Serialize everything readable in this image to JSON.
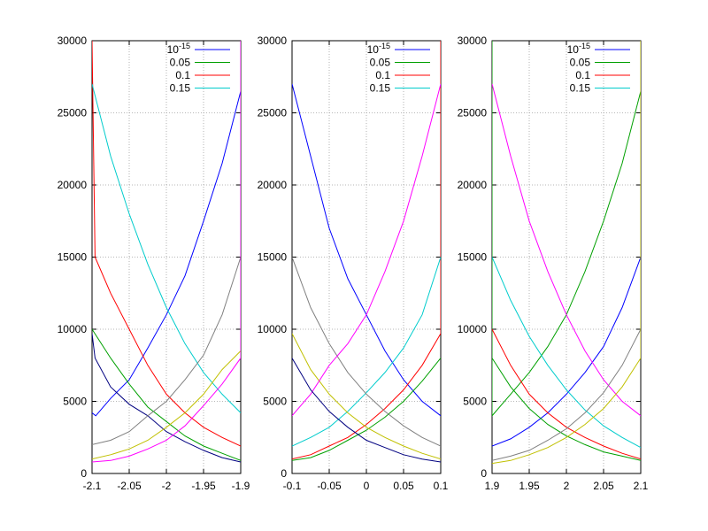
{
  "chart_data": [
    {
      "type": "line",
      "xlim": [
        -2.1,
        -1.9
      ],
      "ylim": [
        0,
        30000
      ],
      "xticks": [
        "-2.1",
        "-2.05",
        "-2",
        "-1.95",
        "-1.9"
      ],
      "yticks": [
        "0",
        "5000",
        "10000",
        "15000",
        "20000",
        "25000",
        "30000"
      ],
      "grid": true,
      "legend_position": "top-right",
      "legend": [
        {
          "base": "10",
          "sup": "-15",
          "color": "#0000ff"
        },
        {
          "base": "0.05",
          "sup": "",
          "color": "#00a000"
        },
        {
          "base": "0.1",
          "sup": "",
          "color": "#ff0000"
        },
        {
          "base": "0.15",
          "sup": "",
          "color": "#00cccc"
        }
      ],
      "series": [
        {
          "color": "#0000ff",
          "x": [
            -2.1,
            -2.095,
            -2.075,
            -2.05,
            -2.025,
            -2,
            -1.975,
            -1.95,
            -1.925,
            -1.9
          ],
          "y": [
            4200,
            4000,
            5200,
            6500,
            8700,
            11000,
            13700,
            17500,
            21500,
            26500
          ]
        },
        {
          "color": "#00a000",
          "x": [
            -2.1,
            -2.075,
            -2.05,
            -2.025,
            -2,
            -1.975,
            -1.95,
            -1.925,
            -1.9
          ],
          "y": [
            10000,
            8000,
            6200,
            4600,
            3600,
            2600,
            1900,
            1400,
            900
          ]
        },
        {
          "color": "#ff0000",
          "x": [
            -2.1,
            -2.096,
            -2.075,
            -2.05,
            -2.025,
            -2,
            -1.975,
            -1.95,
            -1.925,
            -1.9
          ],
          "y": [
            30000,
            15000,
            12500,
            10000,
            7500,
            5500,
            4200,
            3200,
            2500,
            1900
          ]
        },
        {
          "color": "#00cccc",
          "x": [
            -2.1,
            -2.075,
            -2.05,
            -2.025,
            -2,
            -1.975,
            -1.95,
            -1.925,
            -1.9
          ],
          "y": [
            27000,
            22000,
            18000,
            14500,
            11500,
            9000,
            7000,
            5500,
            4200
          ]
        },
        {
          "color": "#000080",
          "x": [
            -2.1,
            -2.096,
            -2.075,
            -2.05,
            -2.025,
            -2,
            -1.975,
            -1.95,
            -1.925,
            -1.9
          ],
          "y": [
            9700,
            8000,
            6000,
            4800,
            4000,
            2900,
            2200,
            1600,
            1100,
            800
          ]
        },
        {
          "color": "#808080",
          "x": [
            -2.1,
            -2.075,
            -2.05,
            -2.025,
            -2,
            -1.975,
            -1.95,
            -1.925,
            -1.9
          ],
          "y": [
            2000,
            2300,
            2900,
            4000,
            5000,
            6500,
            8200,
            11000,
            15000
          ]
        },
        {
          "color": "#c0c000",
          "x": [
            -2.1,
            -2.075,
            -2.05,
            -2.025,
            -2,
            -1.975,
            -1.95,
            -1.925,
            -1.9,
            -1.9
          ],
          "y": [
            1000,
            1300,
            1700,
            2300,
            3200,
            4200,
            5500,
            7200,
            8500,
            10000
          ]
        },
        {
          "color": "#ff00ff",
          "x": [
            -2.1,
            -2.075,
            -2.05,
            -2.025,
            -2,
            -1.975,
            -1.95,
            -1.925,
            -1.9,
            -1.9
          ],
          "y": [
            800,
            900,
            1200,
            1700,
            2300,
            3300,
            4700,
            6200,
            8000,
            30000
          ]
        }
      ]
    },
    {
      "type": "line",
      "xlim": [
        -0.1,
        0.1
      ],
      "ylim": [
        0,
        30000
      ],
      "xticks": [
        "-0.1",
        "-0.05",
        "0",
        "0.05",
        "0.1"
      ],
      "yticks": [
        "0",
        "5000",
        "10000",
        "15000",
        "20000",
        "25000",
        "30000"
      ],
      "grid": true,
      "legend_position": "top-right",
      "legend": [
        {
          "base": "10",
          "sup": "-15",
          "color": "#0000ff"
        },
        {
          "base": "0.05",
          "sup": "",
          "color": "#00a000"
        },
        {
          "base": "0.1",
          "sup": "",
          "color": "#ff0000"
        },
        {
          "base": "0.15",
          "sup": "",
          "color": "#00cccc"
        }
      ],
      "series": [
        {
          "color": "#0000ff",
          "x": [
            -0.1,
            -0.075,
            -0.05,
            -0.025,
            0,
            0.025,
            0.05,
            0.075,
            0.1
          ],
          "y": [
            27000,
            22000,
            17000,
            13500,
            11000,
            8500,
            6500,
            5000,
            4000
          ]
        },
        {
          "color": "#00a000",
          "x": [
            -0.1,
            -0.075,
            -0.05,
            -0.025,
            0,
            0.025,
            0.05,
            0.075,
            0.1
          ],
          "y": [
            900,
            1100,
            1600,
            2300,
            3000,
            3900,
            5000,
            6400,
            8000
          ]
        },
        {
          "color": "#ff0000",
          "x": [
            -0.1,
            -0.075,
            -0.05,
            -0.025,
            0,
            0.025,
            0.05,
            0.075,
            0.1,
            0.1
          ],
          "y": [
            1000,
            1300,
            1900,
            2500,
            3400,
            4500,
            5800,
            7500,
            9700,
            30000
          ]
        },
        {
          "color": "#00cccc",
          "x": [
            -0.1,
            -0.075,
            -0.05,
            -0.025,
            0,
            0.025,
            0.05,
            0.075,
            0.1
          ],
          "y": [
            1900,
            2500,
            3200,
            4300,
            5600,
            7000,
            8700,
            11000,
            15000
          ]
        },
        {
          "color": "#808080",
          "x": [
            -0.1,
            -0.075,
            -0.05,
            -0.025,
            0,
            0.025,
            0.05,
            0.075,
            0.1
          ],
          "y": [
            15000,
            11500,
            9000,
            7000,
            5500,
            4300,
            3300,
            2500,
            1900
          ]
        },
        {
          "color": "#c0c000",
          "x": [
            -0.1,
            -0.075,
            -0.05,
            -0.025,
            0,
            0.025,
            0.05,
            0.075,
            0.1
          ],
          "y": [
            9700,
            7200,
            5500,
            4200,
            3200,
            2500,
            1900,
            1400,
            1000
          ]
        },
        {
          "color": "#ff00ff",
          "x": [
            -0.1,
            -0.075,
            -0.05,
            -0.025,
            0,
            0.025,
            0.05,
            0.075,
            0.1
          ],
          "y": [
            4000,
            5500,
            7500,
            9000,
            11000,
            14000,
            17500,
            22000,
            27000
          ]
        },
        {
          "color": "#000080",
          "x": [
            -0.1,
            -0.075,
            -0.05,
            -0.025,
            0,
            0.025,
            0.05,
            0.075,
            0.1
          ],
          "y": [
            8000,
            5800,
            4300,
            3200,
            2300,
            1800,
            1300,
            1000,
            800
          ]
        }
      ]
    },
    {
      "type": "line",
      "xlim": [
        1.9,
        2.1
      ],
      "ylim": [
        0,
        30000
      ],
      "xticks": [
        "1.9",
        "1.95",
        "2",
        "2.05",
        "2.1"
      ],
      "yticks": [
        "0",
        "5000",
        "10000",
        "15000",
        "20000",
        "25000",
        "30000"
      ],
      "grid": true,
      "legend_position": "top-right",
      "legend": [
        {
          "base": "10",
          "sup": "-15",
          "color": "#0000ff"
        },
        {
          "base": "0.05",
          "sup": "",
          "color": "#00a000"
        },
        {
          "base": "0.1",
          "sup": "",
          "color": "#ff0000"
        },
        {
          "base": "0.15",
          "sup": "",
          "color": "#00cccc"
        }
      ],
      "series": [
        {
          "color": "#0000ff",
          "x": [
            1.9,
            1.925,
            1.95,
            1.975,
            2,
            2.025,
            2.05,
            2.075,
            2.1
          ],
          "y": [
            1900,
            2400,
            3200,
            4200,
            5500,
            7000,
            8800,
            11500,
            15000
          ]
        },
        {
          "color": "#00a000",
          "x": [
            1.9,
            1.9,
            1.925,
            1.95,
            1.975,
            2,
            2.025,
            2.05,
            2.075,
            2.1
          ],
          "y": [
            30000,
            4000,
            5500,
            7000,
            8800,
            11000,
            14000,
            17500,
            21500,
            26500
          ]
        },
        {
          "color": "#ff0000",
          "x": [
            1.9,
            1.925,
            1.95,
            1.975,
            2,
            2.025,
            2.05,
            2.075,
            2.1
          ],
          "y": [
            10000,
            7500,
            5500,
            4200,
            3200,
            2500,
            1900,
            1400,
            1000
          ]
        },
        {
          "color": "#00cccc",
          "x": [
            1.9,
            1.925,
            1.95,
            1.975,
            2,
            2.025,
            2.05,
            2.075,
            2.1
          ],
          "y": [
            15000,
            12000,
            9500,
            7500,
            5800,
            4400,
            3300,
            2500,
            1800
          ]
        },
        {
          "color": "#00a000",
          "x": [
            1.9,
            1.925,
            1.95,
            1.975,
            2,
            2.025,
            2.05,
            2.075,
            2.1
          ],
          "y": [
            8000,
            6000,
            4500,
            3400,
            2600,
            2000,
            1500,
            1200,
            900
          ]
        },
        {
          "color": "#ff00ff",
          "x": [
            1.9,
            1.925,
            1.95,
            1.975,
            2,
            2.025,
            2.05,
            2.075,
            2.1
          ],
          "y": [
            27000,
            22000,
            17500,
            14000,
            11000,
            8500,
            6500,
            5000,
            4000
          ]
        },
        {
          "color": "#808080",
          "x": [
            1.9,
            1.925,
            1.95,
            1.975,
            2,
            2.025,
            2.05,
            2.075,
            2.1
          ],
          "y": [
            900,
            1200,
            1600,
            2300,
            3100,
            4200,
            5600,
            7500,
            10000
          ]
        },
        {
          "color": "#c0c000",
          "x": [
            1.9,
            1.925,
            1.95,
            1.975,
            2,
            2.025,
            2.05,
            2.075,
            2.1,
            2.1
          ],
          "y": [
            700,
            900,
            1300,
            1800,
            2500,
            3400,
            4500,
            6000,
            8000,
            30000
          ]
        }
      ]
    }
  ]
}
